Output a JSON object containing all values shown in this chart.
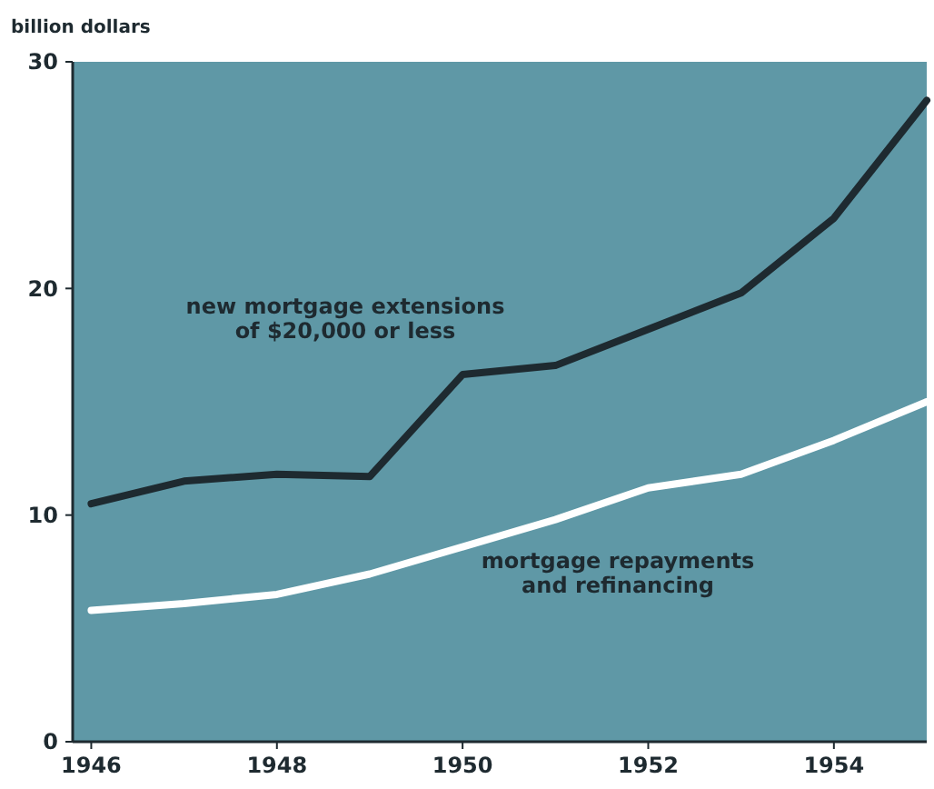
{
  "chart_data": {
    "type": "line",
    "ylabel": "billion dollars",
    "x": [
      1946,
      1947,
      1948,
      1949,
      1950,
      1951,
      1952,
      1953,
      1954,
      1955
    ],
    "series": [
      {
        "color": "#1e2a30",
        "values": [
          10.5,
          11.5,
          11.8,
          11.7,
          16.2,
          16.6,
          18.2,
          19.8,
          23.1,
          28.3
        ]
      },
      {
        "color": "#ffffff",
        "values": [
          5.8,
          6.1,
          6.5,
          7.4,
          8.6,
          9.8,
          11.2,
          11.8,
          13.3,
          15.0
        ]
      }
    ],
    "xlim": [
      1945.8,
      1955
    ],
    "xticks": [
      1946,
      1948,
      1950,
      1952,
      1954
    ],
    "ylim": [
      0,
      30
    ],
    "yticks": [
      0,
      10,
      20,
      30
    ],
    "annotations": [
      "new mortgage extensions\nof $20,000 or less",
      "mortgage repayments\nand refinancing"
    ],
    "line_style": "solid",
    "marker": "none",
    "grid": false
  }
}
